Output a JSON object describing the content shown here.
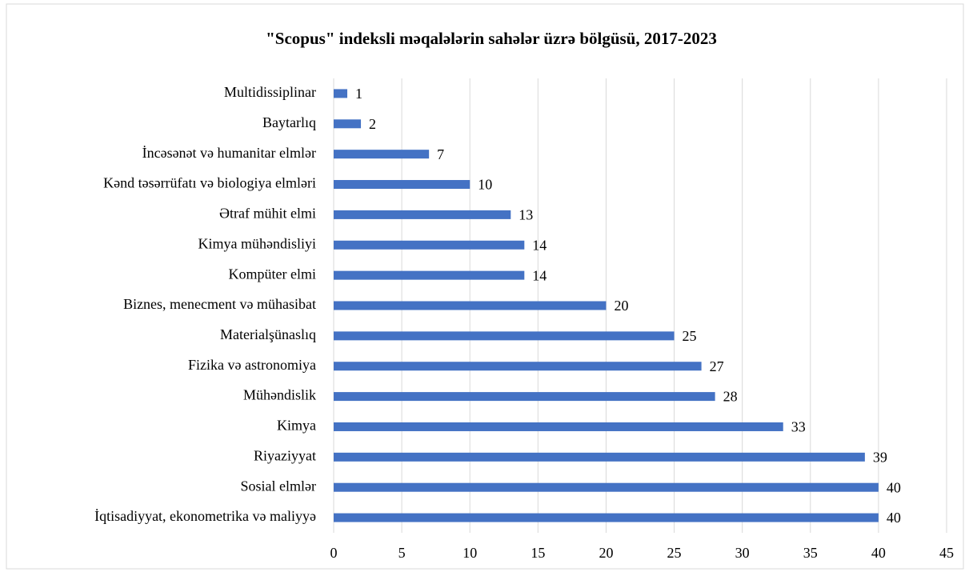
{
  "chart_data": {
    "type": "bar",
    "orientation": "horizontal",
    "title": "\"Scopus\" indeksli məqalələrin sahələr üzrə bölgüsü, 2017-2023",
    "categories": [
      "Multidissiplinar",
      "Baytarlıq",
      "İncəsənət və humanitar elmlər",
      "Kənd təsərrüfatı və biologiya elmləri",
      "Ətraf mühit elmi",
      "Kimya mühəndisliyi",
      "Kompüter elmi",
      "Biznes, menecment və mühasibat",
      "Materialşünaslıq",
      "Fizika və astronomiya",
      "Mühəndislik",
      "Kimya",
      "Riyaziyyat",
      "Sosial elmlər",
      "İqtisadiyyat, ekonometrika və maliyyə"
    ],
    "values": [
      1,
      2,
      7,
      10,
      13,
      14,
      14,
      20,
      25,
      27,
      28,
      33,
      39,
      40,
      40
    ],
    "color": "#4472c4",
    "xlim": [
      0,
      45
    ],
    "xticks": [
      0,
      5,
      10,
      15,
      20,
      25,
      30,
      35,
      40,
      45
    ],
    "grid": true
  }
}
